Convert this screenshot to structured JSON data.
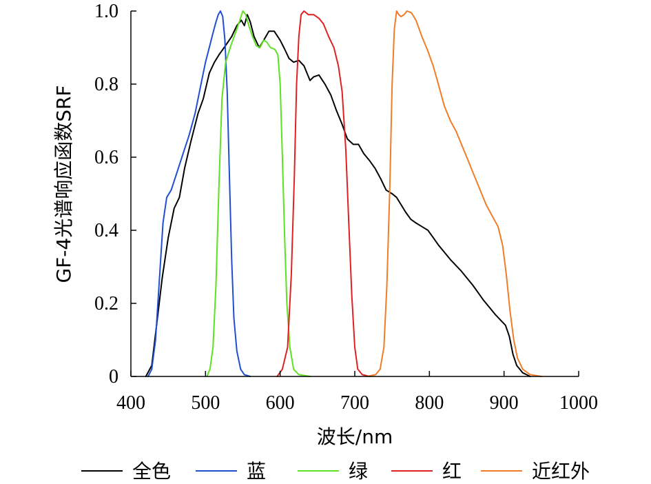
{
  "chart_data": {
    "type": "line",
    "title": "",
    "xlabel": "波长/nm",
    "ylabel": "GF-4光谱响应函数SRF",
    "xlim": [
      400,
      1000
    ],
    "ylim": [
      0,
      1.0
    ],
    "x_ticks": [
      400,
      500,
      600,
      700,
      800,
      900,
      1000
    ],
    "x_tick_labels": [
      "400",
      "500",
      "600",
      "700",
      "800",
      "900",
      "1000"
    ],
    "y_ticks": [
      0,
      0.2,
      0.4,
      0.6,
      0.8,
      1.0
    ],
    "y_tick_labels": [
      "0",
      "0.2",
      "0.4",
      "0.6",
      "0.8",
      "1.0"
    ],
    "grid": false,
    "legend_position": "bottom",
    "series": [
      {
        "name": "全色",
        "color": "#000000",
        "points": [
          [
            420,
            0
          ],
          [
            428,
            0.03
          ],
          [
            435,
            0.15
          ],
          [
            442,
            0.27
          ],
          [
            450,
            0.38
          ],
          [
            458,
            0.46
          ],
          [
            465,
            0.49
          ],
          [
            472,
            0.57
          ],
          [
            480,
            0.64
          ],
          [
            490,
            0.72
          ],
          [
            497,
            0.76
          ],
          [
            505,
            0.83
          ],
          [
            512,
            0.86
          ],
          [
            518,
            0.88
          ],
          [
            525,
            0.9
          ],
          [
            535,
            0.93
          ],
          [
            542,
            0.96
          ],
          [
            548,
            0.975
          ],
          [
            552,
            0.96
          ],
          [
            556,
            0.99
          ],
          [
            560,
            0.97
          ],
          [
            565,
            0.93
          ],
          [
            572,
            0.9
          ],
          [
            578,
            0.92
          ],
          [
            585,
            0.945
          ],
          [
            592,
            0.945
          ],
          [
            600,
            0.92
          ],
          [
            605,
            0.9
          ],
          [
            612,
            0.87
          ],
          [
            618,
            0.86
          ],
          [
            625,
            0.865
          ],
          [
            632,
            0.85
          ],
          [
            640,
            0.81
          ],
          [
            645,
            0.82
          ],
          [
            652,
            0.825
          ],
          [
            660,
            0.8
          ],
          [
            668,
            0.77
          ],
          [
            675,
            0.73
          ],
          [
            683,
            0.69
          ],
          [
            690,
            0.65
          ],
          [
            698,
            0.635
          ],
          [
            705,
            0.635
          ],
          [
            712,
            0.61
          ],
          [
            720,
            0.59
          ],
          [
            727,
            0.57
          ],
          [
            735,
            0.54
          ],
          [
            742,
            0.51
          ],
          [
            750,
            0.5
          ],
          [
            756,
            0.49
          ],
          [
            762,
            0.47
          ],
          [
            768,
            0.45
          ],
          [
            775,
            0.43
          ],
          [
            782,
            0.42
          ],
          [
            790,
            0.41
          ],
          [
            798,
            0.4
          ],
          [
            805,
            0.38
          ],
          [
            812,
            0.36
          ],
          [
            820,
            0.34
          ],
          [
            828,
            0.32
          ],
          [
            835,
            0.305
          ],
          [
            842,
            0.29
          ],
          [
            850,
            0.27
          ],
          [
            858,
            0.25
          ],
          [
            865,
            0.23
          ],
          [
            872,
            0.21
          ],
          [
            880,
            0.19
          ],
          [
            888,
            0.17
          ],
          [
            895,
            0.155
          ],
          [
            902,
            0.14
          ],
          [
            907,
            0.11
          ],
          [
            912,
            0.06
          ],
          [
            917,
            0.03
          ],
          [
            925,
            0.01
          ],
          [
            935,
            0
          ]
        ]
      },
      {
        "name": "蓝",
        "color": "#1f4fd0",
        "points": [
          [
            423,
            0
          ],
          [
            428,
            0.02
          ],
          [
            433,
            0.1
          ],
          [
            438,
            0.26
          ],
          [
            443,
            0.42
          ],
          [
            448,
            0.49
          ],
          [
            454,
            0.51
          ],
          [
            462,
            0.56
          ],
          [
            470,
            0.61
          ],
          [
            478,
            0.66
          ],
          [
            486,
            0.72
          ],
          [
            494,
            0.8
          ],
          [
            500,
            0.86
          ],
          [
            505,
            0.9
          ],
          [
            510,
            0.94
          ],
          [
            514,
            0.97
          ],
          [
            517,
            0.99
          ],
          [
            520,
            1.0
          ],
          [
            523,
            0.985
          ],
          [
            526,
            0.92
          ],
          [
            529,
            0.78
          ],
          [
            532,
            0.55
          ],
          [
            535,
            0.32
          ],
          [
            538,
            0.16
          ],
          [
            542,
            0.07
          ],
          [
            547,
            0.02
          ],
          [
            552,
            0.005
          ],
          [
            560,
            0
          ]
        ]
      },
      {
        "name": "绿",
        "color": "#5fe021",
        "points": [
          [
            502,
            0
          ],
          [
            506,
            0.02
          ],
          [
            510,
            0.08
          ],
          [
            514,
            0.25
          ],
          [
            518,
            0.52
          ],
          [
            522,
            0.76
          ],
          [
            527,
            0.86
          ],
          [
            533,
            0.9
          ],
          [
            540,
            0.94
          ],
          [
            546,
            0.975
          ],
          [
            550,
            1.0
          ],
          [
            554,
            0.99
          ],
          [
            558,
            0.96
          ],
          [
            563,
            0.93
          ],
          [
            568,
            0.905
          ],
          [
            573,
            0.9
          ],
          [
            578,
            0.92
          ],
          [
            582,
            0.915
          ],
          [
            587,
            0.9
          ],
          [
            593,
            0.895
          ],
          [
            597,
            0.88
          ],
          [
            600,
            0.8
          ],
          [
            603,
            0.6
          ],
          [
            606,
            0.38
          ],
          [
            609,
            0.2
          ],
          [
            613,
            0.08
          ],
          [
            618,
            0.02
          ],
          [
            625,
            0.005
          ],
          [
            640,
            0
          ]
        ]
      },
      {
        "name": "红",
        "color": "#e02020",
        "points": [
          [
            596,
            0
          ],
          [
            603,
            0.02
          ],
          [
            610,
            0.08
          ],
          [
            615,
            0.28
          ],
          [
            619,
            0.55
          ],
          [
            622,
            0.8
          ],
          [
            625,
            0.93
          ],
          [
            628,
            0.99
          ],
          [
            632,
            1.0
          ],
          [
            638,
            0.99
          ],
          [
            645,
            0.99
          ],
          [
            652,
            0.98
          ],
          [
            658,
            0.965
          ],
          [
            665,
            0.93
          ],
          [
            672,
            0.9
          ],
          [
            678,
            0.85
          ],
          [
            683,
            0.78
          ],
          [
            688,
            0.62
          ],
          [
            692,
            0.42
          ],
          [
            696,
            0.22
          ],
          [
            700,
            0.08
          ],
          [
            704,
            0.02
          ],
          [
            710,
            0.005
          ],
          [
            720,
            0
          ]
        ]
      },
      {
        "name": "近红外",
        "color": "#f07c28",
        "points": [
          [
            716,
            0
          ],
          [
            728,
            0.005
          ],
          [
            734,
            0.02
          ],
          [
            739,
            0.08
          ],
          [
            743,
            0.25
          ],
          [
            747,
            0.52
          ],
          [
            750,
            0.8
          ],
          [
            753,
            0.95
          ],
          [
            756,
            1.0
          ],
          [
            759,
            0.99
          ],
          [
            762,
            0.985
          ],
          [
            766,
            0.99
          ],
          [
            770,
            1.0
          ],
          [
            776,
            0.995
          ],
          [
            782,
            0.975
          ],
          [
            790,
            0.93
          ],
          [
            798,
            0.89
          ],
          [
            805,
            0.85
          ],
          [
            812,
            0.8
          ],
          [
            820,
            0.74
          ],
          [
            828,
            0.7
          ],
          [
            836,
            0.67
          ],
          [
            844,
            0.63
          ],
          [
            852,
            0.59
          ],
          [
            860,
            0.55
          ],
          [
            868,
            0.51
          ],
          [
            876,
            0.47
          ],
          [
            884,
            0.44
          ],
          [
            892,
            0.41
          ],
          [
            898,
            0.36
          ],
          [
            903,
            0.28
          ],
          [
            908,
            0.18
          ],
          [
            913,
            0.1
          ],
          [
            918,
            0.05
          ],
          [
            925,
            0.02
          ],
          [
            935,
            0.005
          ],
          [
            950,
            0
          ]
        ]
      }
    ]
  }
}
